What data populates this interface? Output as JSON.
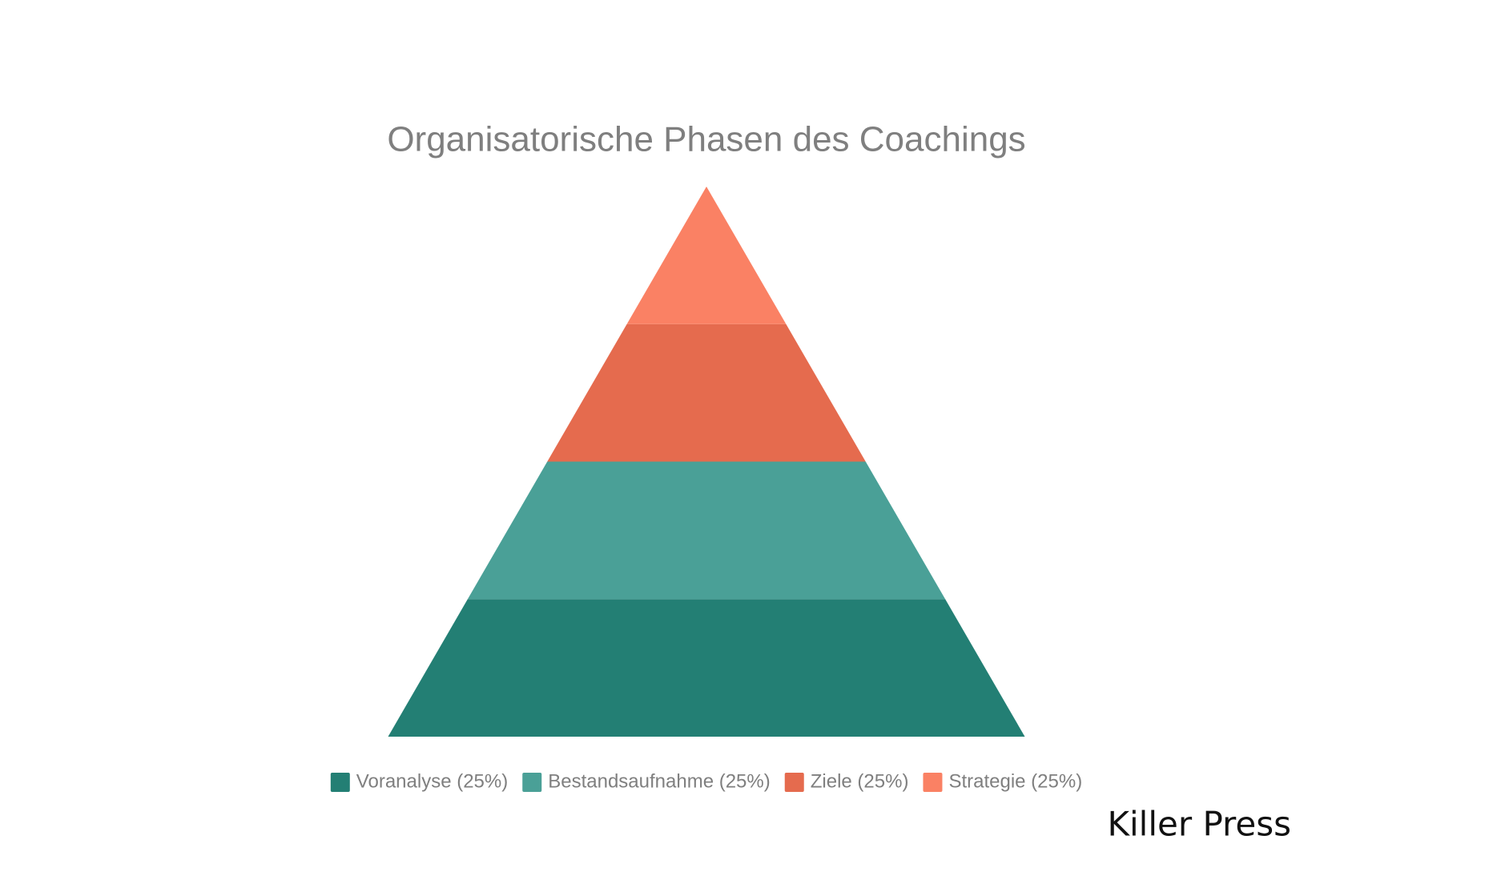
{
  "chart_data": {
    "type": "pyramid",
    "title": "Organisatorische Phasen des Coachings",
    "categories": [
      "Voranalyse (25%)",
      "Bestandsaufnahme (25%)",
      "Ziele (25%)",
      "Strategie (25%)"
    ],
    "values": [
      25,
      25,
      25,
      25
    ],
    "colors": [
      "#237f74",
      "#4aa097",
      "#e56b4e",
      "#fa8164"
    ],
    "legend": "bottom"
  },
  "watermark": "Killer Press"
}
